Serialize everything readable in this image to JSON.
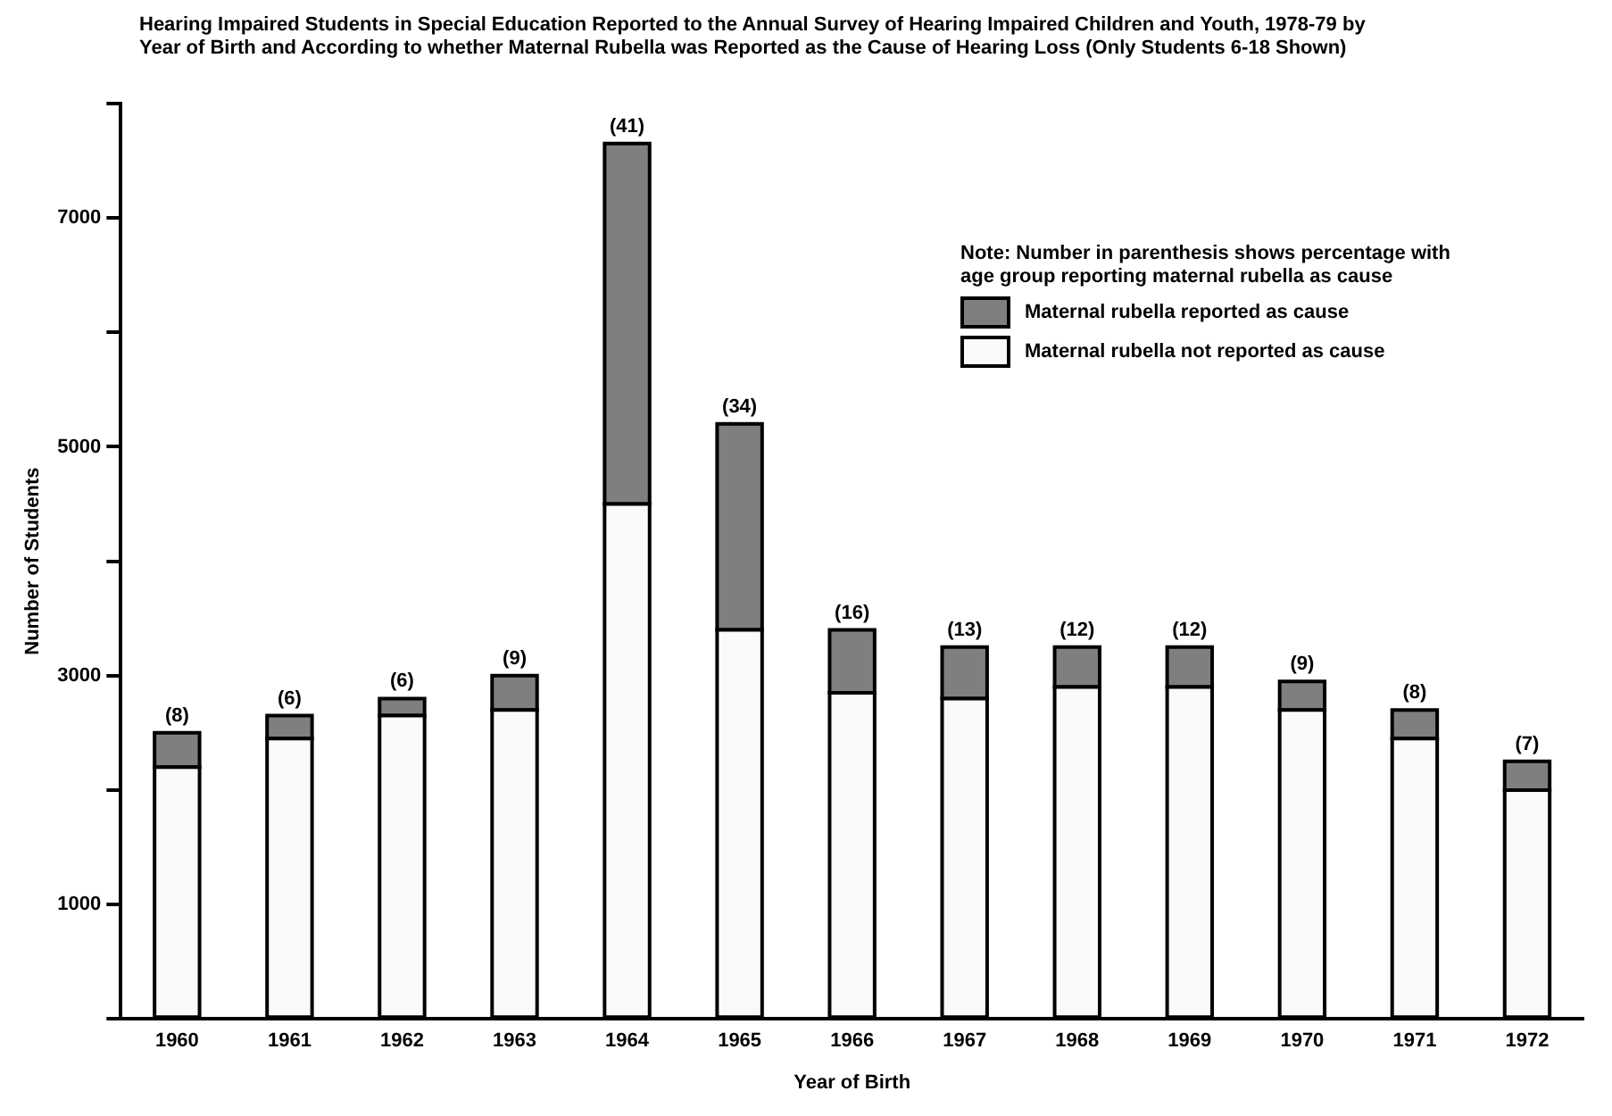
{
  "chart_data": {
    "type": "bar",
    "stacked": true,
    "title": "Hearing Impaired Students in Special Education Reported to the Annual Survey of Hearing Impaired Children and Youth, 1978-79 by Year of Birth and According to whether Maternal Rubella was Reported as the Cause of Hearing Loss (Only Students 6-18 Shown)",
    "xlabel": "Year of Birth",
    "ylabel": "Number of Students",
    "categories": [
      "1960",
      "1961",
      "1962",
      "1963",
      "1964",
      "1965",
      "1966",
      "1967",
      "1968",
      "1969",
      "1970",
      "1971",
      "1972"
    ],
    "series": [
      {
        "name": "Maternal rubella not reported as cause",
        "color": "#fafafa",
        "values": [
          2200,
          2450,
          2650,
          2700,
          4500,
          3400,
          2850,
          2800,
          2900,
          2900,
          2700,
          2450,
          2000
        ]
      },
      {
        "name": "Maternal rubella reported as cause",
        "color": "#7f7f7f",
        "values": [
          300,
          200,
          150,
          300,
          3150,
          1800,
          550,
          450,
          350,
          350,
          250,
          250,
          250
        ]
      }
    ],
    "ylim": [
      0,
      8000
    ],
    "yticks": [
      {
        "value": 0,
        "label": null
      },
      1000,
      {
        "value": 2000,
        "label": null
      },
      3000,
      {
        "value": 4000,
        "label": null
      },
      5000,
      {
        "value": 6000,
        "label": null
      },
      7000,
      {
        "value": 8000,
        "label": null
      }
    ],
    "grid": false,
    "legend": "top right",
    "annotations": [
      "Note: Number in parenthesis shows percentage with age group reporting maternal rubella as cause",
      {
        "text": "(8)",
        "x": "1960",
        "y": 2500
      },
      {
        "text": "(6)",
        "x": "1961",
        "y": 2650
      },
      {
        "text": "(6)",
        "x": "1962",
        "y": 2800
      },
      {
        "text": "(9)",
        "x": "1963",
        "y": 3000
      },
      {
        "text": "(41)",
        "x": "1964",
        "y": 7650
      },
      {
        "text": "(34)",
        "x": "1965",
        "y": 5200
      },
      {
        "text": "(16)",
        "x": "1966",
        "y": 3400
      },
      {
        "text": "(13)",
        "x": "1967",
        "y": 3250
      },
      {
        "text": "(12)",
        "x": "1968",
        "y": 3250
      },
      {
        "text": "(12)",
        "x": "1969",
        "y": 3250
      },
      {
        "text": "(9)",
        "x": "1970",
        "y": 2950
      },
      {
        "text": "(8)",
        "x": "1971",
        "y": 2700
      },
      {
        "text": "(7)",
        "x": "1972",
        "y": 2250
      }
    ]
  }
}
